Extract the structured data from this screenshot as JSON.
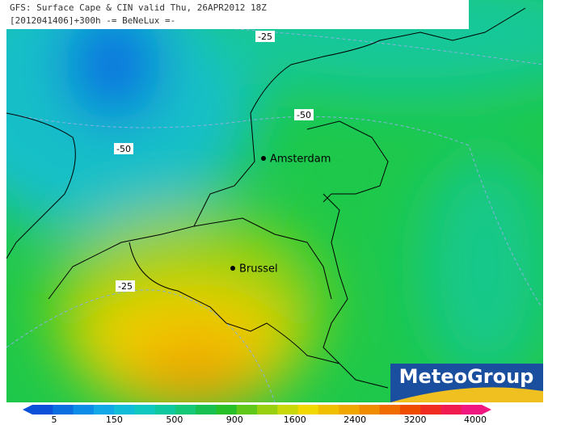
{
  "header": {
    "line1": "GFS: Surface Cape & CIN valid Thu, 26APR2012 18Z",
    "line2": "[2012041406]+300h -= BeNeLux =-"
  },
  "map": {
    "contour_labels": [
      "-25",
      "-50",
      "-50",
      "-25"
    ],
    "cities": [
      {
        "name": "Amsterdam"
      },
      {
        "name": "Brussel"
      }
    ]
  },
  "logo": "MeteoGroup",
  "legend": {
    "colors": [
      "#0a50d8",
      "#0a6ee0",
      "#0a8ce8",
      "#12a8e8",
      "#10bcd8",
      "#10c8c0",
      "#10c8a0",
      "#14c878",
      "#18c050",
      "#28c028",
      "#60c818",
      "#98d010",
      "#c8d808",
      "#f0d800",
      "#f0c000",
      "#f0a800",
      "#f08c00",
      "#f06c00",
      "#f04c00",
      "#f02c20",
      "#f01c50",
      "#f01880"
    ],
    "ticks": [
      "5",
      "150",
      "500",
      "900",
      "1600",
      "2400",
      "3200",
      "4000"
    ]
  }
}
